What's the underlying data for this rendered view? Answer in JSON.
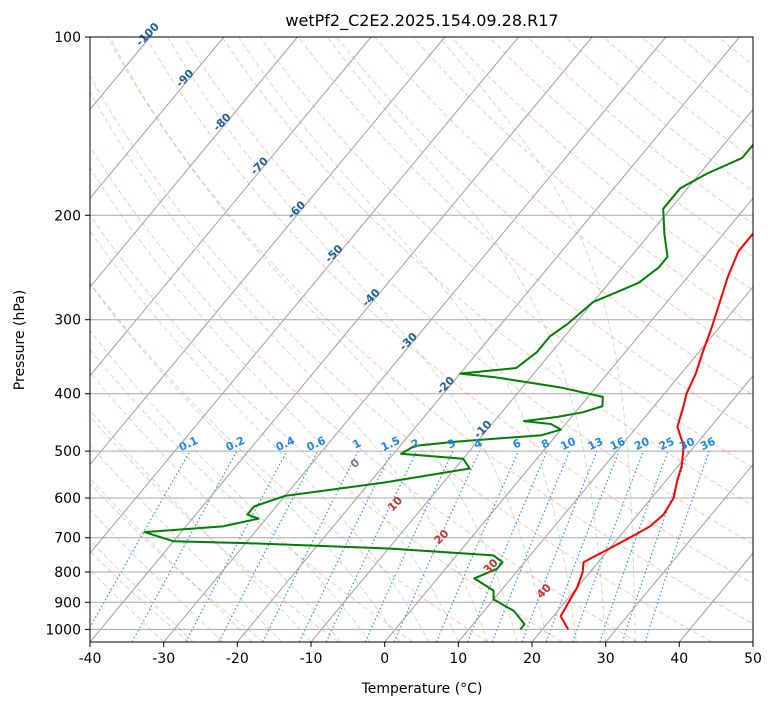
{
  "chart_data": {
    "type": "line",
    "title": "wetPf2_C2E2.2025.154.09.28.R17",
    "xlabel": "Temperature (°C)",
    "ylabel": "Pressure (hPa)",
    "xlim": [
      -40,
      50
    ],
    "ylim": [
      1050,
      100
    ],
    "y_scale": "log",
    "x_ticks": [
      -40,
      -30,
      -20,
      -10,
      0,
      10,
      20,
      30,
      40,
      50
    ],
    "y_ticks": [
      100,
      200,
      300,
      400,
      500,
      600,
      700,
      800,
      900,
      1000
    ],
    "grid": true,
    "series": [
      {
        "color": "#ff0000",
        "points": [
          [
            23.5,
            1000
          ],
          [
            21,
            950
          ],
          [
            20.5,
            900
          ],
          [
            20,
            850
          ],
          [
            19,
            800
          ],
          [
            18,
            770
          ],
          [
            20,
            730
          ],
          [
            22,
            690
          ],
          [
            23,
            670
          ],
          [
            23.5,
            640
          ],
          [
            23,
            600
          ],
          [
            21.5,
            560
          ],
          [
            20.5,
            530
          ],
          [
            18.5,
            490
          ],
          [
            15.5,
            455
          ],
          [
            14,
            420
          ],
          [
            13,
            400
          ],
          [
            12,
            370
          ],
          [
            10.5,
            340
          ],
          [
            9,
            310
          ],
          [
            7.5,
            285
          ],
          [
            5.5,
            255
          ],
          [
            4,
            230
          ],
          [
            4,
            210
          ],
          [
            5,
            195
          ],
          [
            6,
            180
          ],
          [
            6,
            160
          ],
          [
            5.5,
            140
          ],
          [
            6,
            125
          ],
          [
            7,
            112
          ],
          [
            9,
            104
          ],
          [
            10,
            100
          ]
        ]
      },
      {
        "color": "#008000",
        "points": [
          [
            17,
            1000
          ],
          [
            17,
            980
          ],
          [
            14,
            930
          ],
          [
            10,
            890
          ],
          [
            9,
            860
          ],
          [
            5,
            820
          ],
          [
            7,
            790
          ],
          [
            7,
            770
          ],
          [
            5,
            750
          ],
          [
            -10,
            730
          ],
          [
            -30,
            715
          ],
          [
            -40,
            710
          ],
          [
            -45,
            685
          ],
          [
            -35,
            670
          ],
          [
            -31,
            650
          ],
          [
            -33,
            640
          ],
          [
            -33,
            620
          ],
          [
            -30,
            595
          ],
          [
            -18,
            565
          ],
          [
            -8,
            535
          ],
          [
            -10,
            515
          ],
          [
            -19,
            505
          ],
          [
            -18,
            490
          ],
          [
            -13,
            482
          ],
          [
            -2,
            470
          ],
          [
            0,
            460
          ],
          [
            -2,
            450
          ],
          [
            -6,
            445
          ],
          [
            -2,
            438
          ],
          [
            1,
            430
          ],
          [
            3,
            420
          ],
          [
            2,
            405
          ],
          [
            -5,
            390
          ],
          [
            -15,
            375
          ],
          [
            -20,
            370
          ],
          [
            -13,
            362
          ],
          [
            -12,
            340
          ],
          [
            -12,
            320
          ],
          [
            -11,
            305
          ],
          [
            -10,
            280
          ],
          [
            -8,
            270
          ],
          [
            -6,
            260
          ],
          [
            -5,
            245
          ],
          [
            -5,
            235
          ],
          [
            -8,
            215
          ],
          [
            -11,
            195
          ],
          [
            -11,
            180
          ],
          [
            -9,
            170
          ],
          [
            -6,
            160
          ],
          [
            -6,
            145
          ],
          [
            -5,
            130
          ],
          [
            -2,
            115
          ],
          [
            1,
            105
          ],
          [
            2,
            100
          ]
        ]
      }
    ],
    "annotations": {
      "dry_adiabat_labels": [
        "-100",
        "-90",
        "-80",
        "-70",
        "-60",
        "-50",
        "-40",
        "-30",
        "-20",
        "-10",
        "0",
        "10",
        "20",
        "30",
        "40"
      ],
      "mixing_ratio_labels": [
        "0.1",
        "0.2",
        "0.4",
        "0.6",
        "1",
        "1.5",
        "2",
        "3",
        "4",
        "6",
        "8",
        "10",
        "13",
        "16",
        "20",
        "25",
        "30",
        "36"
      ]
    }
  }
}
